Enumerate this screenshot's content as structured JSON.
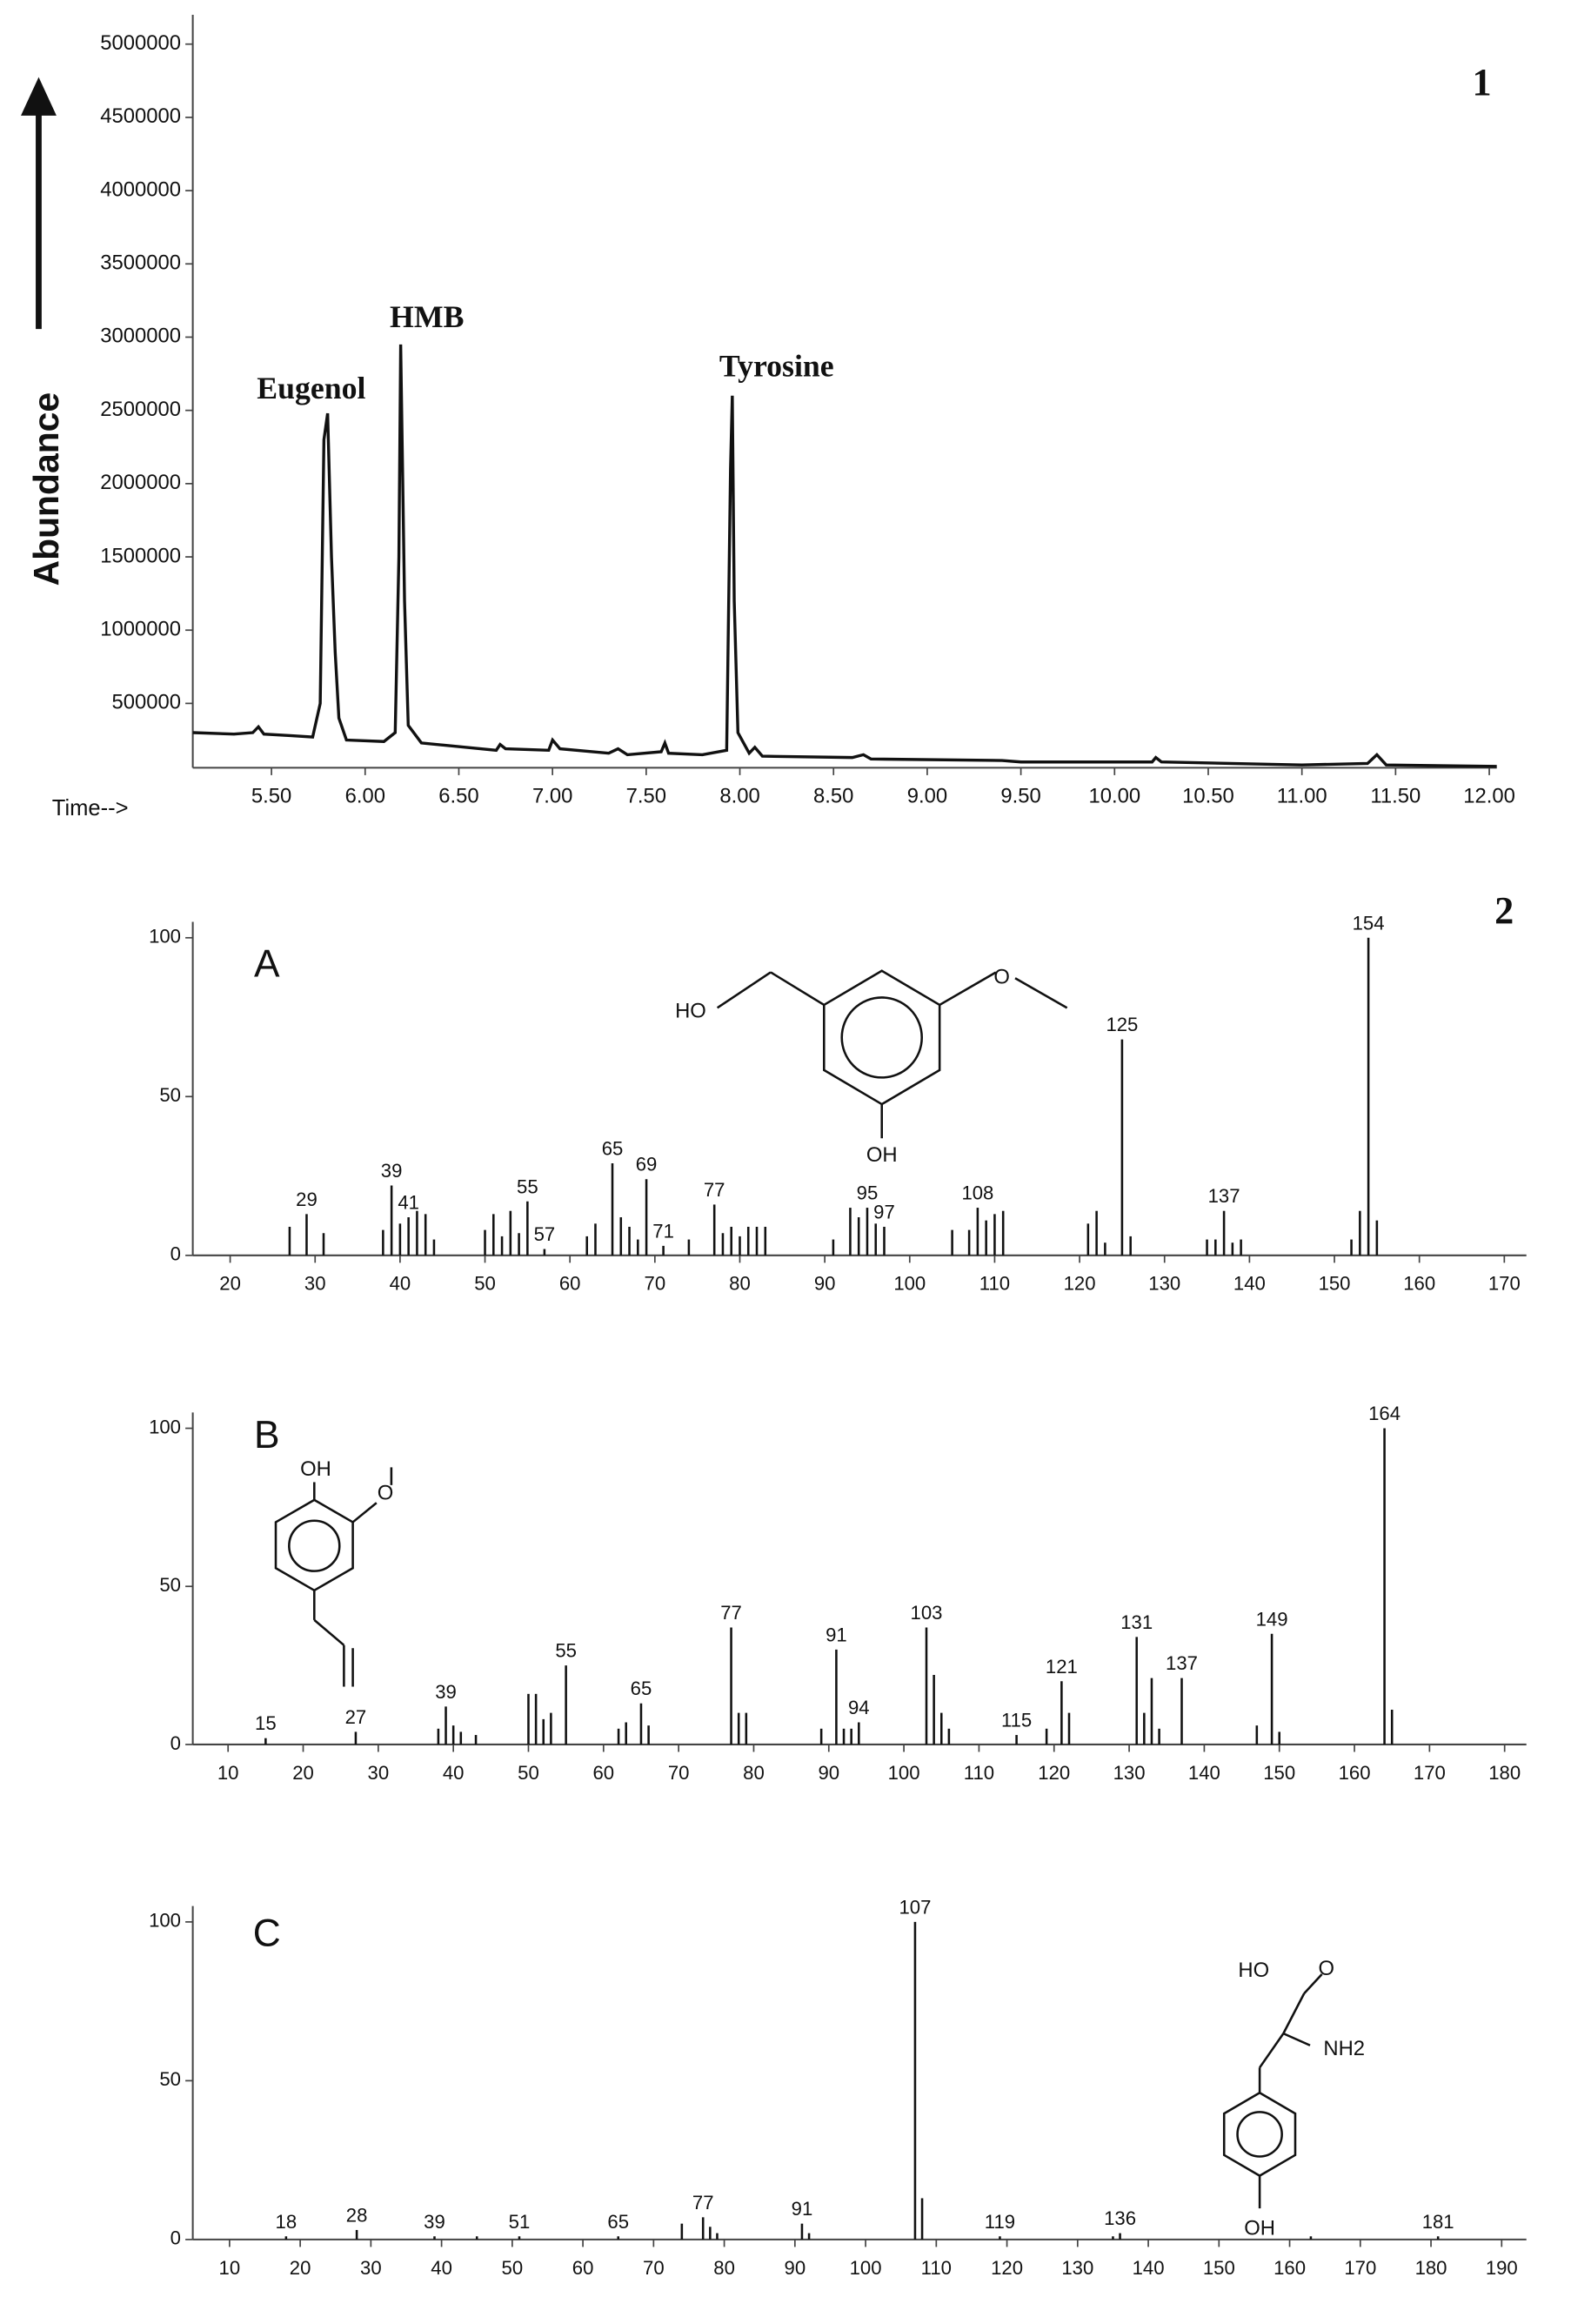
{
  "chart_data": [
    {
      "type": "line",
      "figure_label": "1",
      "y_label": "Abundance",
      "x_label": "Time-->",
      "annotations": [
        "Eugenol",
        "HMB",
        "Tyrosine"
      ],
      "x": [
        5.08,
        5.3,
        5.4,
        5.43,
        5.46,
        5.6,
        5.72,
        5.76,
        5.78,
        5.8,
        5.82,
        5.84,
        5.86,
        5.9,
        6.1,
        6.16,
        6.18,
        6.19,
        6.21,
        6.23,
        6.3,
        6.7,
        6.72,
        6.75,
        6.98,
        7.0,
        7.04,
        7.3,
        7.35,
        7.4,
        7.58,
        7.6,
        7.62,
        7.8,
        7.93,
        7.95,
        7.96,
        7.97,
        7.99,
        8.05,
        8.08,
        8.12,
        8.6,
        8.66,
        8.7,
        9.4,
        9.5,
        10.2,
        10.22,
        10.25,
        11.0,
        11.35,
        11.4,
        11.45,
        12.04
      ],
      "values": [
        300000,
        290000,
        300000,
        340000,
        290000,
        280000,
        270000,
        500000,
        2300000,
        2480000,
        1500000,
        850000,
        400000,
        250000,
        240000,
        300000,
        1500000,
        2950000,
        1200000,
        350000,
        230000,
        180000,
        220000,
        190000,
        180000,
        250000,
        190000,
        160000,
        190000,
        150000,
        170000,
        230000,
        160000,
        150000,
        180000,
        2100000,
        2600000,
        1200000,
        300000,
        160000,
        200000,
        140000,
        130000,
        150000,
        120000,
        110000,
        100000,
        100000,
        130000,
        100000,
        80000,
        90000,
        150000,
        80000,
        70000
      ],
      "color": "#111111",
      "xlim": [
        5.08,
        12.04
      ],
      "ylim": [
        0,
        5200000
      ],
      "xticks": [
        {
          "value": 5.5,
          "label": "5.50"
        },
        {
          "value": 6.0,
          "label": "6.00"
        },
        {
          "value": 6.5,
          "label": "6.50"
        },
        {
          "value": 7.0,
          "label": "7.00"
        },
        {
          "value": 7.5,
          "label": "7.50"
        },
        {
          "value": 8.0,
          "label": "8.00"
        },
        {
          "value": 8.5,
          "label": "8.50"
        },
        {
          "value": 9.0,
          "label": "9.00"
        },
        {
          "value": 9.5,
          "label": "9.50"
        },
        {
          "value": 10.0,
          "label": "10.00"
        },
        {
          "value": 10.5,
          "label": "10.50"
        },
        {
          "value": 11.0,
          "label": "11.00"
        },
        {
          "value": 11.5,
          "label": "11.50"
        },
        {
          "value": 12.0,
          "label": "12.00"
        }
      ],
      "yticks": [
        500000,
        1000000,
        1500000,
        2000000,
        2500000,
        3000000,
        3500000,
        4000000,
        4500000,
        5000000
      ],
      "grid": false
    },
    {
      "type": "bar",
      "figure_label": "2",
      "panel": "A",
      "annotations": [
        "HO",
        "OH"
      ],
      "color": "#111111",
      "labeled_x": [
        29,
        39,
        41,
        55,
        57,
        65,
        69,
        71,
        77,
        95,
        97,
        108,
        125,
        137,
        154
      ],
      "labeled_values": [
        13,
        22,
        12,
        17,
        2,
        29,
        24,
        3,
        16,
        15,
        9,
        15,
        68,
        14,
        100
      ],
      "x": [
        27,
        31,
        38,
        40,
        42,
        43,
        44,
        50,
        51,
        52,
        53,
        54,
        62,
        63,
        66,
        67,
        68,
        74,
        78,
        79,
        80,
        81,
        82,
        83,
        91,
        93,
        94,
        96,
        105,
        107,
        109,
        110,
        111,
        121,
        122,
        123,
        126,
        135,
        136,
        138,
        139,
        152,
        153,
        155
      ],
      "values": [
        9,
        7,
        8,
        10,
        14,
        13,
        5,
        8,
        13,
        6,
        14,
        7,
        6,
        10,
        12,
        9,
        5,
        5,
        7,
        9,
        6,
        9,
        9,
        9,
        5,
        15,
        12,
        10,
        8,
        8,
        11,
        13,
        14,
        10,
        14,
        4,
        6,
        5,
        5,
        4,
        5,
        5,
        14,
        11
      ],
      "xlim": [
        15.6,
        172.6
      ],
      "ylim": [
        0,
        105
      ],
      "xticks": [
        20,
        30,
        40,
        50,
        60,
        70,
        80,
        90,
        100,
        110,
        120,
        130,
        140,
        150,
        160,
        170
      ],
      "yticks": [
        0,
        50,
        100
      ],
      "grid": false
    },
    {
      "type": "bar",
      "panel": "B",
      "annotations": [
        "OH"
      ],
      "color": "#111111",
      "labeled_x": [
        15,
        27,
        39,
        55,
        65,
        77,
        91,
        94,
        103,
        115,
        121,
        131,
        137,
        149,
        164
      ],
      "labeled_values": [
        2,
        4,
        12,
        25,
        13,
        37,
        30,
        7,
        37,
        3,
        20,
        34,
        21,
        35,
        100
      ],
      "x": [
        38,
        40,
        41,
        43,
        50,
        51,
        52,
        53,
        62,
        63,
        66,
        78,
        79,
        89,
        92,
        93,
        104,
        105,
        106,
        119,
        122,
        132,
        133,
        134,
        147,
        150,
        165
      ],
      "values": [
        5,
        6,
        4,
        3,
        16,
        16,
        8,
        10,
        5,
        7,
        6,
        10,
        10,
        5,
        5,
        5,
        22,
        10,
        5,
        5,
        10,
        10,
        21,
        5,
        6,
        4,
        11
      ],
      "xlim": [
        5.3,
        182.9
      ],
      "ylim": [
        0,
        105
      ],
      "xticks": [
        10,
        20,
        30,
        40,
        50,
        60,
        70,
        80,
        90,
        100,
        110,
        120,
        130,
        140,
        150,
        160,
        170,
        180
      ],
      "yticks": [
        0,
        50,
        100
      ],
      "grid": false
    },
    {
      "type": "bar",
      "panel": "C",
      "annotations": [
        "HO",
        "NH2",
        "OH"
      ],
      "color": "#111111",
      "labeled_x": [
        18,
        28,
        39,
        51,
        65,
        77,
        91,
        107,
        119,
        136,
        181
      ],
      "labeled_values": [
        1,
        3,
        1,
        1,
        1,
        7,
        5,
        100,
        1,
        2,
        1
      ],
      "x": [
        45,
        74,
        78,
        79,
        92,
        108,
        135,
        163
      ],
      "values": [
        1,
        5,
        4,
        2,
        2,
        13,
        1,
        1
      ],
      "xlim": [
        4.8,
        193.5
      ],
      "ylim": [
        0,
        105
      ],
      "xticks": [
        10,
        20,
        30,
        40,
        50,
        60,
        70,
        80,
        90,
        100,
        110,
        120,
        130,
        140,
        150,
        160,
        170,
        180,
        190
      ],
      "yticks": [
        0,
        50,
        100
      ],
      "grid": false
    }
  ]
}
